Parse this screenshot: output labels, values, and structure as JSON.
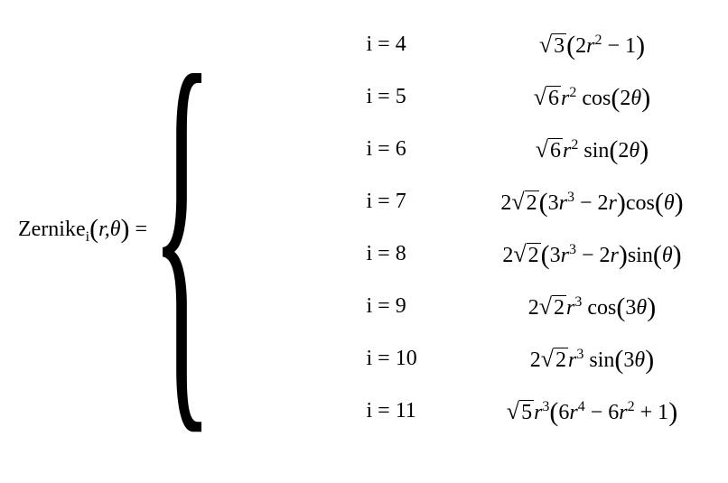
{
  "equation": {
    "lhs_name": "Zernike",
    "lhs_sub": "i",
    "lhs_args": "r,θ",
    "font_family": "Times New Roman",
    "font_size_pt": 24,
    "background_color": "#ffffff",
    "text_color": "#000000",
    "cases": [
      {
        "label": "i = 4",
        "sqrt": "3",
        "coef": "",
        "body": "(2r² − 1)",
        "trig": ""
      },
      {
        "label": "i = 5",
        "sqrt": "6",
        "coef": "",
        "body": "r²",
        "trig": "cos(2θ)"
      },
      {
        "label": "i = 6",
        "sqrt": "6",
        "coef": "",
        "body": "r²",
        "trig": "sin(2θ)"
      },
      {
        "label": "i = 7",
        "sqrt": "2",
        "coef": "2",
        "body": "(3r³ − 2r)",
        "trig": "cos(θ)"
      },
      {
        "label": "i = 8",
        "sqrt": "2",
        "coef": "2",
        "body": "(3r³ − 2r)",
        "trig": "sin(θ)"
      },
      {
        "label": "i = 9",
        "sqrt": "2",
        "coef": "2",
        "body": "r³",
        "trig": "cos(3θ)"
      },
      {
        "label": "i = 10",
        "sqrt": "2",
        "coef": "2",
        "body": "r³",
        "trig": "sin(3θ)"
      },
      {
        "label": "i = 11",
        "sqrt": "5",
        "coef": "",
        "body": "r³(6r⁴ − 6r² + 1)",
        "trig": ""
      }
    ]
  }
}
